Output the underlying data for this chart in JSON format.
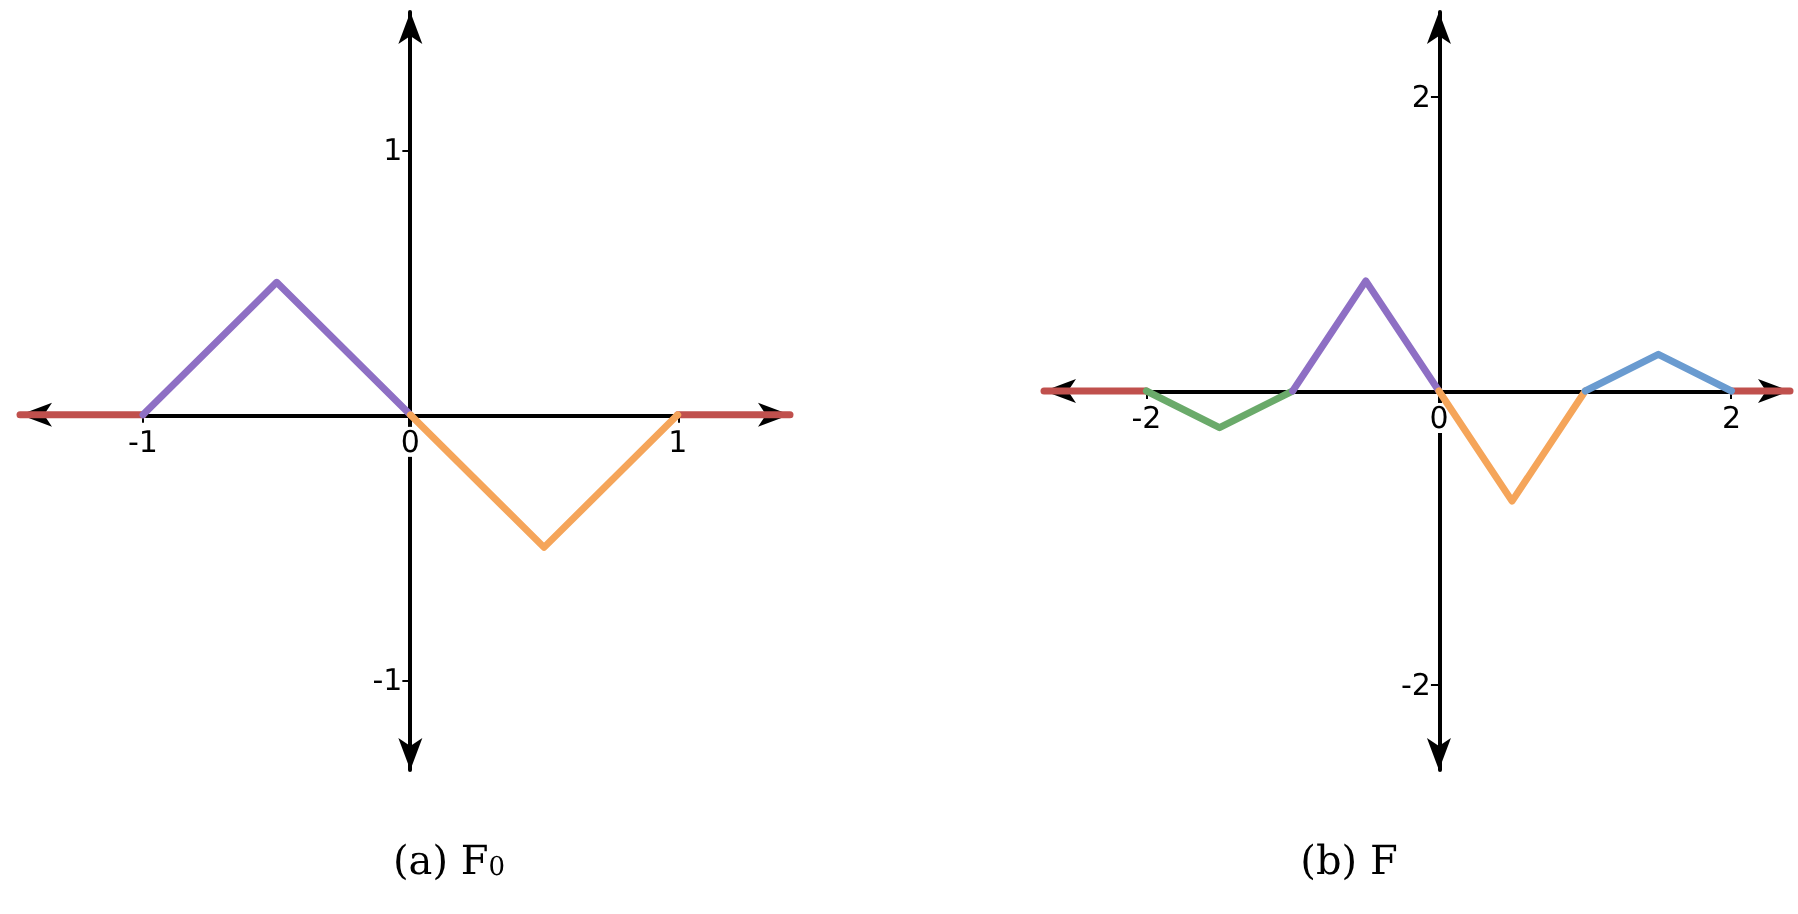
{
  "chart_data": [
    {
      "type": "line",
      "title": "(a) F$_{0}$",
      "xlim": [
        -1.46,
        1.42
      ],
      "ylim": [
        -1.34,
        1.52
      ],
      "xticks": [
        -1,
        0,
        1
      ],
      "yticks": [
        -1,
        1
      ],
      "grid": false,
      "marker": "none",
      "line_style": "solid",
      "series": [
        {
          "color": "#c0504d",
          "x": [
            -1.46,
            -1
          ],
          "values": [
            0,
            0
          ]
        },
        {
          "color": "#c0504d",
          "x": [
            1,
            1.42
          ],
          "values": [
            0,
            0
          ]
        },
        {
          "color": "#8e6fc4",
          "x": [
            -1,
            -0.5,
            0
          ],
          "values": [
            0,
            0.5,
            0
          ]
        },
        {
          "color": "#f5a55a",
          "x": [
            0,
            0.5,
            1
          ],
          "values": [
            0,
            -0.5,
            0
          ]
        }
      ]
    },
    {
      "type": "line",
      "title": "(b) F",
      "xlim": [
        -2.7,
        2.4
      ],
      "ylim": [
        -2.58,
        2.58
      ],
      "xticks": [
        -2,
        0,
        2
      ],
      "yticks": [
        -2,
        2
      ],
      "grid": false,
      "marker": "none",
      "line_style": "solid",
      "series": [
        {
          "color": "#c0504d",
          "x": [
            -2.7,
            -2
          ],
          "values": [
            0,
            0
          ]
        },
        {
          "color": "#c0504d",
          "x": [
            2,
            2.4
          ],
          "values": [
            0,
            0
          ]
        },
        {
          "color": "#6aaa6a",
          "x": [
            -2,
            -1.5,
            -1
          ],
          "values": [
            0,
            -0.25,
            0
          ]
        },
        {
          "color": "#8e6fc4",
          "x": [
            -1,
            -0.5,
            0
          ],
          "values": [
            0,
            0.75,
            0
          ]
        },
        {
          "color": "#f5a55a",
          "x": [
            0,
            0.5,
            1
          ],
          "values": [
            0,
            -0.75,
            0
          ]
        },
        {
          "color": "#6a9bd0",
          "x": [
            1,
            1.5,
            2
          ],
          "values": [
            0,
            0.25,
            0
          ]
        }
      ]
    }
  ]
}
